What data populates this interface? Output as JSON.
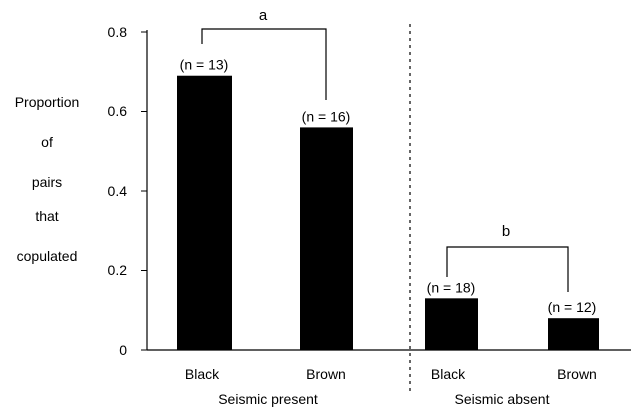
{
  "chart_data": {
    "type": "bar",
    "ylabel_lines": [
      "Proportion",
      "of",
      "pairs",
      "that",
      "copulated"
    ],
    "ylim": [
      0,
      0.8
    ],
    "yticks": [
      0,
      0.2,
      0.4,
      0.6,
      0.8
    ],
    "ytick_labels": [
      "0",
      "0.2",
      "0.4",
      "0.6",
      "0.8"
    ],
    "groups": [
      {
        "label": "Seismic present",
        "bars": [
          {
            "category": "Black",
            "value": 0.69,
            "n_label": "(n = 13)"
          },
          {
            "category": "Brown",
            "value": 0.56,
            "n_label": "(n = 16)"
          }
        ],
        "significance": "a"
      },
      {
        "label": "Seismic absent",
        "bars": [
          {
            "category": "Black",
            "value": 0.13,
            "n_label": "(n = 18)"
          },
          {
            "category": "Brown",
            "value": 0.08,
            "n_label": "(n = 12)"
          }
        ],
        "significance": "b"
      }
    ],
    "bar_color": "#000000",
    "grid": false,
    "group_divider": "dashed"
  }
}
